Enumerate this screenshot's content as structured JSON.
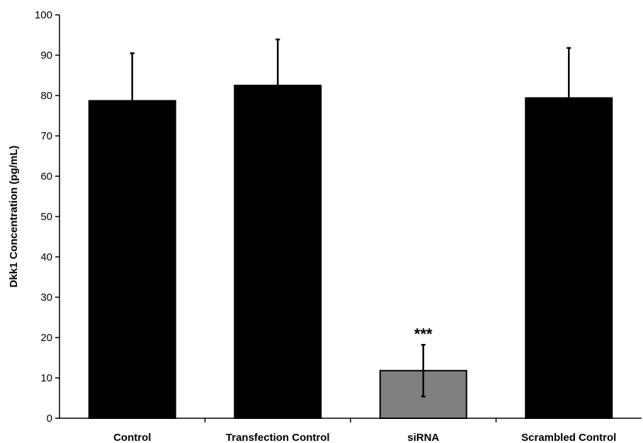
{
  "chart_data": {
    "type": "bar",
    "title": "",
    "xlabel": "",
    "ylabel": "Dkk1 Concentration (pg/mL)",
    "ylim": [
      0,
      100
    ],
    "yticks": [
      0,
      10,
      20,
      30,
      40,
      50,
      60,
      70,
      80,
      90,
      100
    ],
    "grid": false,
    "categories": [
      "Control",
      "Transfection Control",
      "siRNA",
      "Scrambled Control"
    ],
    "values": [
      78.7,
      82.5,
      11.8,
      79.4
    ],
    "errors": [
      11.8,
      11.4,
      6.4,
      12.4
    ],
    "bar_colors": [
      "#000000",
      "#000000",
      "#808080",
      "#000000"
    ],
    "annotations": [
      {
        "category": "siRNA",
        "text": "***"
      }
    ]
  }
}
